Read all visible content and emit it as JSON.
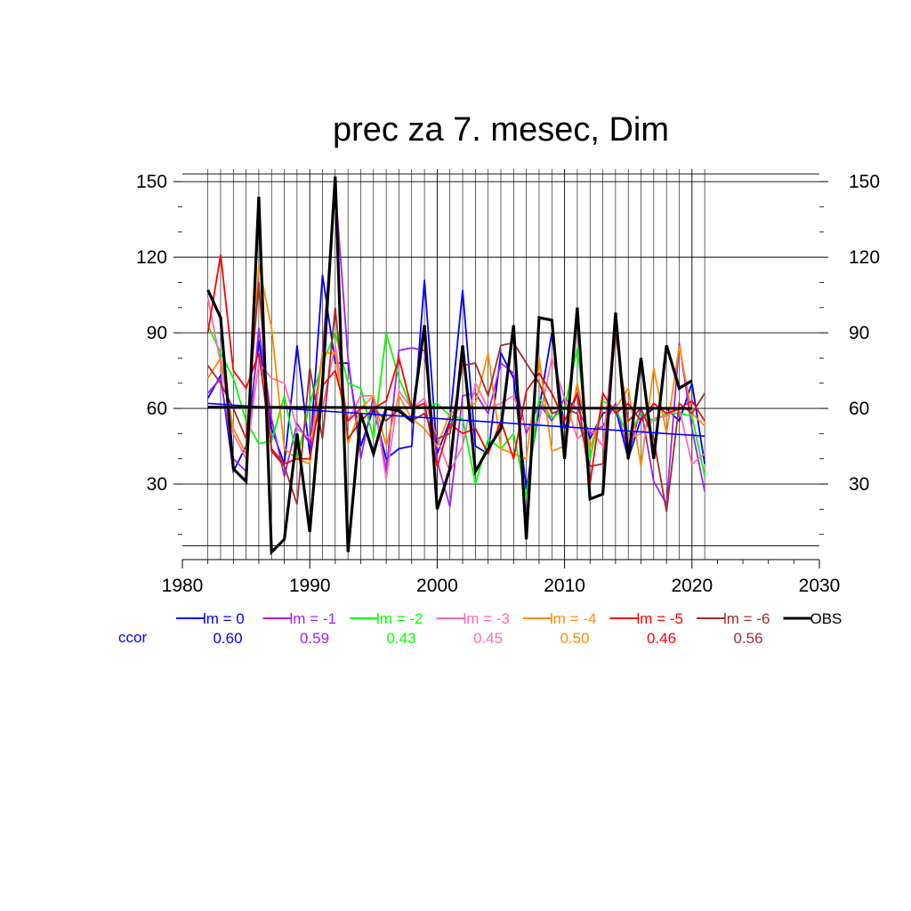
{
  "chart_data": {
    "type": "line",
    "title": "prec za 7. mesec, Dim",
    "xlabel": "",
    "ylabel": "",
    "xlim": [
      1980,
      2030
    ],
    "ylim": [
      0,
      155
    ],
    "x_ticks": [
      1980,
      1990,
      2000,
      2010,
      2020,
      2030
    ],
    "y_ticks": [
      30,
      60,
      90,
      120,
      150
    ],
    "grid": true,
    "legend_placement": "bottom",
    "ccor_label": "ccor",
    "ccor_color": "#0000ff",
    "x": [
      1982,
      1983,
      1984,
      1985,
      1986,
      1987,
      1988,
      1989,
      1990,
      1991,
      1992,
      1993,
      1994,
      1995,
      1996,
      1997,
      1998,
      1999,
      2000,
      2001,
      2002,
      2003,
      2004,
      2005,
      2006,
      2007,
      2008,
      2009,
      2010,
      2011,
      2012,
      2013,
      2014,
      2015,
      2016,
      2017,
      2018,
      2019,
      2020,
      2021
    ],
    "series": [
      {
        "name": "lm = 0",
        "color": "#0000ff",
        "ccor": "0.60",
        "values": [
          64,
          73,
          35,
          45,
          87,
          52,
          38,
          85,
          42,
          113,
          78,
          78,
          45,
          60,
          40,
          44,
          45,
          111,
          42,
          55,
          107,
          45,
          42,
          82,
          72,
          28,
          60,
          90,
          52,
          66,
          48,
          58,
          60,
          40,
          56,
          60,
          60,
          55,
          70,
          38
        ]
      },
      {
        "name": "lm = -1",
        "color": "#a020f0",
        "ccor": "0.59",
        "values": [
          66,
          72,
          40,
          35,
          92,
          56,
          33,
          54,
          46,
          82,
          148,
          80,
          40,
          65,
          35,
          83,
          84,
          83,
          39,
          21,
          65,
          66,
          58,
          78,
          74,
          50,
          62,
          55,
          64,
          60,
          50,
          53,
          62,
          42,
          60,
          31,
          22,
          86,
          52,
          27
        ]
      },
      {
        "name": "lm = -2",
        "color": "#00ff00",
        "ccor": "0.43",
        "values": [
          93,
          82,
          72,
          55,
          46,
          47,
          65,
          40,
          62,
          78,
          90,
          70,
          68,
          48,
          90,
          72,
          60,
          60,
          62,
          57,
          56,
          30,
          48,
          44,
          50,
          25,
          64,
          56,
          60,
          84,
          40,
          63,
          60,
          49,
          58,
          55,
          58,
          58,
          57,
          33
        ]
      },
      {
        "name": "lm = -3",
        "color": "#ff69b4",
        "ccor": "0.45",
        "values": [
          104,
          78,
          50,
          40,
          78,
          72,
          70,
          52,
          48,
          60,
          85,
          55,
          65,
          65,
          32,
          67,
          60,
          64,
          48,
          35,
          45,
          70,
          60,
          62,
          65,
          52,
          55,
          80,
          64,
          48,
          52,
          45,
          95,
          48,
          50,
          56,
          57,
          60,
          38,
          42
        ]
      },
      {
        "name": "lm = -4",
        "color": "#ff8c00",
        "ccor": "0.50",
        "values": [
          72,
          80,
          52,
          42,
          117,
          92,
          44,
          40,
          38,
          82,
          82,
          46,
          60,
          65,
          45,
          65,
          56,
          52,
          45,
          58,
          60,
          62,
          82,
          44,
          42,
          40,
          80,
          43,
          45,
          70,
          44,
          60,
          60,
          68,
          37,
          76,
          50,
          85,
          58,
          53
        ]
      },
      {
        "name": "lm = -5",
        "color": "#ff0000",
        "ccor": "0.46",
        "values": [
          90,
          121,
          75,
          68,
          82,
          44,
          38,
          40,
          40,
          69,
          75,
          55,
          60,
          60,
          63,
          80,
          60,
          62,
          37,
          54,
          50,
          52,
          42,
          55,
          40,
          67,
          74,
          66,
          55,
          66,
          30,
          66,
          58,
          62,
          55,
          62,
          58,
          60,
          63,
          55
        ]
      },
      {
        "name": "lm = -6",
        "color": "#a52a2a",
        "ccor": "0.56",
        "values": [
          77,
          70,
          60,
          48,
          110,
          43,
          37,
          22,
          76,
          48,
          100,
          48,
          55,
          60,
          55,
          60,
          55,
          58,
          48,
          50,
          77,
          78,
          65,
          85,
          86,
          78,
          70,
          58,
          60,
          58,
          37,
          38,
          90,
          55,
          60,
          48,
          19,
          62,
          58,
          66
        ]
      },
      {
        "name": "OBS",
        "color": "#000000",
        "ccor": "",
        "values": [
          107,
          96,
          36,
          31,
          144,
          3,
          8,
          50,
          11,
          70,
          152,
          3,
          58,
          42,
          60,
          59,
          55,
          93,
          20,
          36,
          85,
          35,
          44,
          52,
          93,
          8,
          96,
          95,
          40,
          100,
          24,
          26,
          98,
          40,
          80,
          40,
          85,
          68,
          71,
          null
        ]
      }
    ],
    "trend_lines": [
      {
        "color": "#0000ff",
        "x": [
          1982,
          2021
        ],
        "values": [
          62,
          49
        ]
      },
      {
        "color": "#000000",
        "x": [
          1982,
          2020
        ],
        "values": [
          60.5,
          60
        ]
      }
    ]
  }
}
